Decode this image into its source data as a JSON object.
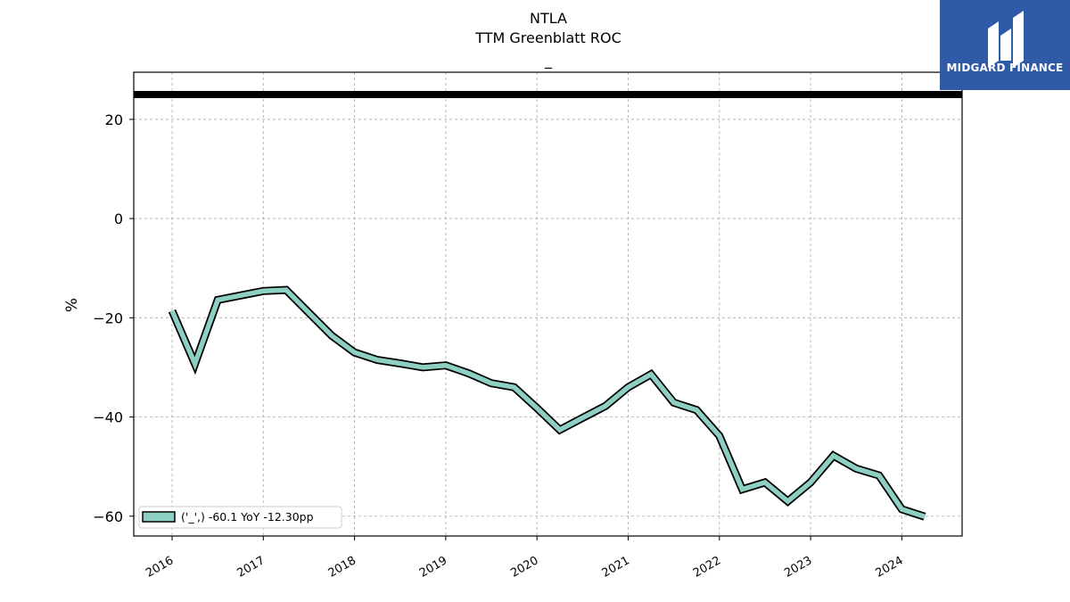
{
  "header": {
    "ticker": "NTLA",
    "metric": "TTM Greenblatt ROC",
    "subtitle": "_"
  },
  "logo": {
    "text": "MIDGARD FINANCE",
    "bg": "#2f5aa8"
  },
  "chart_data": {
    "type": "line",
    "title": "NTLA",
    "subtitle": "TTM Greenblatt ROC",
    "ylabel": "%",
    "xlabel": "",
    "ylim": [
      -64,
      29.5
    ],
    "yticks": [
      20,
      0,
      -20,
      -40,
      -60
    ],
    "xticks": [
      "2016",
      "2017",
      "2018",
      "2019",
      "2020",
      "2021",
      "2022",
      "2023",
      "2024"
    ],
    "grid": true,
    "legend_position": "lower-left",
    "reference_line": {
      "y": 25,
      "color": "#000000"
    },
    "series": [
      {
        "name": "('_',) -60.1 YoY -12.30pp",
        "color": "#8ecfc4",
        "x": [
          "2016-01",
          "2016-04",
          "2016-07",
          "2016-10",
          "2017-01",
          "2017-04",
          "2017-07",
          "2017-10",
          "2018-01",
          "2018-04",
          "2018-07",
          "2018-10",
          "2019-01",
          "2019-04",
          "2019-07",
          "2019-10",
          "2020-01",
          "2020-04",
          "2020-07",
          "2020-10",
          "2021-01",
          "2021-04",
          "2021-07",
          "2021-10",
          "2022-01",
          "2022-04",
          "2022-07",
          "2022-10",
          "2023-01",
          "2023-04",
          "2023-07",
          "2023-10",
          "2024-01",
          "2024-04"
        ],
        "values": [
          -18.6,
          -29.3,
          -16.4,
          -15.5,
          -14.6,
          -14.4,
          -19.0,
          -23.6,
          -27.0,
          -28.5,
          -29.2,
          -30.0,
          -29.6,
          -31.2,
          -33.2,
          -34.0,
          -38.2,
          -42.6,
          -40.2,
          -37.8,
          -34.0,
          -31.4,
          -37.1,
          -38.6,
          -43.8,
          -54.6,
          -53.2,
          -57.0,
          -53.2,
          -47.8,
          -50.4,
          -51.8,
          -58.6,
          -60.1
        ]
      }
    ]
  }
}
